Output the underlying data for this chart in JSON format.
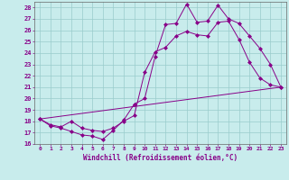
{
  "xlabel": "Windchill (Refroidissement éolien,°C)",
  "xlim": [
    -0.5,
    23.5
  ],
  "ylim": [
    16,
    28.5
  ],
  "xticks": [
    0,
    1,
    2,
    3,
    4,
    5,
    6,
    7,
    8,
    9,
    10,
    11,
    12,
    13,
    14,
    15,
    16,
    17,
    18,
    19,
    20,
    21,
    22,
    23
  ],
  "yticks": [
    16,
    17,
    18,
    19,
    20,
    21,
    22,
    23,
    24,
    25,
    26,
    27,
    28
  ],
  "bg_color": "#c8ecec",
  "line_color": "#880088",
  "grid_color": "#99cccc",
  "line1_x": [
    0,
    1,
    2,
    3,
    4,
    5,
    6,
    7,
    8,
    9,
    10,
    11,
    12,
    13,
    14,
    15,
    16,
    17,
    18,
    19,
    20,
    21,
    22,
    23
  ],
  "line1_y": [
    18.2,
    17.6,
    17.4,
    17.1,
    16.8,
    16.7,
    16.4,
    17.2,
    18.1,
    19.5,
    20.0,
    23.7,
    26.5,
    26.6,
    28.3,
    26.7,
    26.8,
    28.2,
    27.0,
    26.6,
    25.5,
    24.4,
    23.0,
    21.0
  ],
  "line2_x": [
    0,
    1,
    2,
    3,
    4,
    5,
    6,
    7,
    8,
    9,
    10,
    11,
    12,
    13,
    14,
    15,
    16,
    17,
    18,
    19,
    20,
    21,
    22,
    23
  ],
  "line2_y": [
    18.2,
    17.7,
    17.5,
    18.0,
    17.4,
    17.2,
    17.1,
    17.4,
    18.0,
    18.5,
    22.3,
    24.1,
    24.5,
    25.5,
    25.9,
    25.6,
    25.5,
    26.7,
    26.8,
    25.2,
    23.2,
    21.8,
    21.2,
    21.0
  ],
  "line3_x": [
    0,
    23
  ],
  "line3_y": [
    18.2,
    21.0
  ]
}
